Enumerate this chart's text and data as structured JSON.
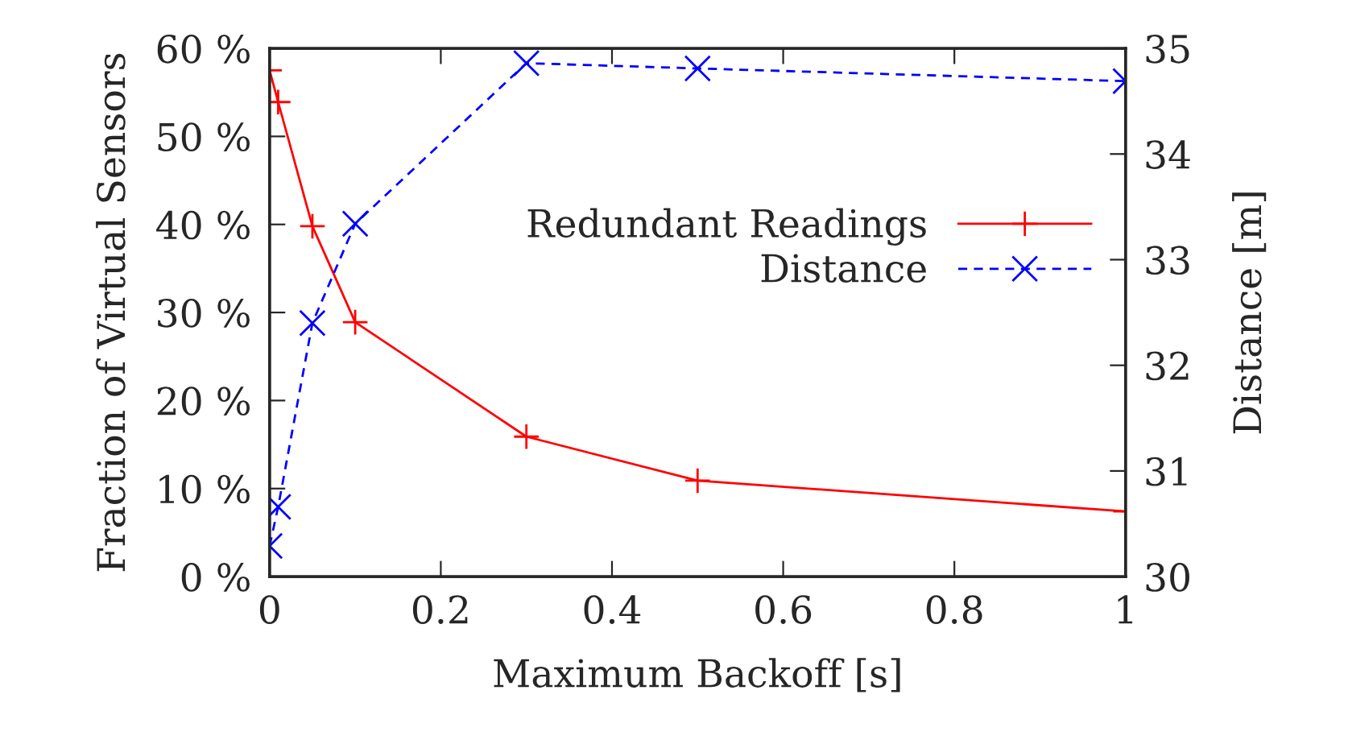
{
  "chart_data": {
    "type": "line",
    "xlabel": "Maximum Backoff [s]",
    "ylabel": "Fraction of Virtual Sensors",
    "y2label": "Distance [m]",
    "x": [
      0,
      0.01,
      0.05,
      0.1,
      0.3,
      0.5,
      1
    ],
    "xlim": [
      0,
      1
    ],
    "xticks": [
      0,
      0.2,
      0.4,
      0.6,
      0.8,
      1
    ],
    "ylim": [
      0,
      60
    ],
    "yticks": [
      {
        "value": 0,
        "label": "0 %"
      },
      {
        "value": 10,
        "label": "10 %"
      },
      {
        "value": 20,
        "label": "20 %"
      },
      {
        "value": 30,
        "label": "30 %"
      },
      {
        "value": 40,
        "label": "40 %"
      },
      {
        "value": 50,
        "label": "50 %"
      },
      {
        "value": 60,
        "label": "60 %"
      }
    ],
    "y2lim": [
      30,
      35
    ],
    "y2ticks": [
      30,
      31,
      32,
      33,
      34,
      35
    ],
    "series": [
      {
        "name": "Redundant Readings",
        "color": "#ff0000",
        "marker": "plus",
        "line_style": "solid",
        "values": [
          57.5,
          53.9,
          39.8,
          28.9,
          15.9,
          10.9,
          7.4
        ]
      },
      {
        "name": "Distance",
        "color": "#0000ff",
        "marker": "cross",
        "line_style": "dashed",
        "axis": "y2",
        "values": [
          30.29,
          30.66,
          32.4,
          33.34,
          34.86,
          34.81,
          34.69
        ]
      }
    ],
    "legend": "right",
    "grid": false
  }
}
